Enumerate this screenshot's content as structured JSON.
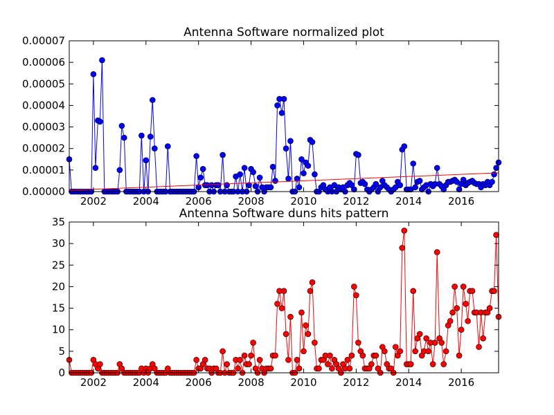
{
  "chart_data": [
    {
      "type": "line",
      "title": "Antenna Software normalized plot",
      "xlim": [
        2001.08,
        2017.42
      ],
      "xticks": [
        2002,
        2004,
        2006,
        2008,
        2010,
        2012,
        2014,
        2016
      ],
      "ylim": [
        0,
        7e-05
      ],
      "yticks": [
        {
          "value": 0,
          "label": "0.00000"
        },
        1e-05,
        2e-05,
        3e-05,
        4e-05,
        5e-05,
        6e-05,
        7e-05
      ],
      "x": [
        2001.08,
        2001.17,
        2001.25,
        2001.33,
        2001.42,
        2001.5,
        2001.58,
        2001.67,
        2001.75,
        2001.83,
        2001.92,
        2002.0,
        2002.08,
        2002.17,
        2002.25,
        2002.33,
        2002.42,
        2002.5,
        2002.58,
        2002.67,
        2002.75,
        2002.83,
        2002.92,
        2003.0,
        2003.08,
        2003.17,
        2003.25,
        2003.33,
        2003.42,
        2003.5,
        2003.58,
        2003.67,
        2003.75,
        2003.83,
        2003.92,
        2004.0,
        2004.08,
        2004.17,
        2004.25,
        2004.33,
        2004.42,
        2004.5,
        2004.58,
        2004.67,
        2004.75,
        2004.83,
        2004.92,
        2005.0,
        2005.08,
        2005.17,
        2005.25,
        2005.33,
        2005.42,
        2005.5,
        2005.58,
        2005.67,
        2005.75,
        2005.83,
        2005.92,
        2006.0,
        2006.08,
        2006.17,
        2006.25,
        2006.33,
        2006.42,
        2006.5,
        2006.58,
        2006.67,
        2006.75,
        2006.83,
        2006.92,
        2007.0,
        2007.08,
        2007.17,
        2007.25,
        2007.33,
        2007.42,
        2007.5,
        2007.58,
        2007.67,
        2007.75,
        2007.83,
        2007.92,
        2008.0,
        2008.08,
        2008.17,
        2008.25,
        2008.33,
        2008.42,
        2008.5,
        2008.58,
        2008.67,
        2008.75,
        2008.83,
        2008.92,
        2009.0,
        2009.08,
        2009.17,
        2009.25,
        2009.33,
        2009.42,
        2009.5,
        2009.58,
        2009.67,
        2009.75,
        2009.83,
        2009.92,
        2010.0,
        2010.08,
        2010.17,
        2010.25,
        2010.33,
        2010.42,
        2010.5,
        2010.58,
        2010.67,
        2010.75,
        2010.83,
        2010.92,
        2011.0,
        2011.08,
        2011.17,
        2011.25,
        2011.33,
        2011.42,
        2011.5,
        2011.58,
        2011.67,
        2011.75,
        2011.83,
        2011.92,
        2012.0,
        2012.08,
        2012.17,
        2012.25,
        2012.33,
        2012.42,
        2012.5,
        2012.58,
        2012.67,
        2012.75,
        2012.83,
        2012.92,
        2013.0,
        2013.08,
        2013.17,
        2013.25,
        2013.33,
        2013.42,
        2013.5,
        2013.58,
        2013.67,
        2013.75,
        2013.83,
        2013.92,
        2014.0,
        2014.08,
        2014.17,
        2014.25,
        2014.33,
        2014.42,
        2014.5,
        2014.58,
        2014.67,
        2014.75,
        2014.83,
        2014.92,
        2015.0,
        2015.08,
        2015.17,
        2015.25,
        2015.33,
        2015.42,
        2015.5,
        2015.58,
        2015.67,
        2015.75,
        2015.83,
        2015.92,
        2016.0,
        2016.08,
        2016.17,
        2016.25,
        2016.33,
        2016.42,
        2016.5,
        2016.58,
        2016.67,
        2016.75,
        2016.83,
        2016.92,
        2017.0,
        2017.08,
        2017.17,
        2017.25,
        2017.33,
        2017.42
      ],
      "color": "#0000ff",
      "values": [
        1.5e-05,
        0,
        0,
        0,
        0,
        0,
        0,
        0,
        0,
        0,
        0,
        5.45e-05,
        1.1e-05,
        3.3e-05,
        3.25e-05,
        6.1e-05,
        0,
        0,
        0,
        0,
        0,
        0,
        0,
        1e-05,
        3.05e-05,
        2.5e-05,
        0,
        0,
        0,
        0,
        0,
        0,
        0,
        2.6e-05,
        0,
        1.45e-05,
        0,
        2.55e-05,
        4.25e-05,
        2e-05,
        0,
        0,
        0,
        0,
        0,
        2.1e-05,
        0,
        0,
        0,
        0,
        0,
        0,
        0,
        0,
        0,
        0,
        0,
        0,
        1.65e-05,
        2e-06,
        6.5e-06,
        1.05e-05,
        3e-06,
        3e-06,
        0,
        3e-06,
        0,
        3e-06,
        3e-06,
        0,
        1.7e-05,
        0,
        3e-06,
        0,
        0,
        0,
        7e-06,
        0,
        8e-06,
        0,
        1.1e-05,
        0,
        3e-06,
        1.05e-05,
        9e-06,
        2.5e-06,
        0,
        6.5e-06,
        2e-06,
        0,
        2e-06,
        2e-06,
        2e-06,
        1.15e-05,
        5e-06,
        4e-05,
        4.3e-05,
        3.65e-05,
        4.3e-05,
        2e-05,
        6e-06,
        2.35e-05,
        0,
        0,
        6e-06,
        2e-06,
        1.5e-05,
        8.5e-06,
        1.35e-05,
        1.2e-05,
        2.4e-05,
        2.3e-05,
        8e-06,
        0,
        0,
        2e-06,
        3e-06,
        1e-06,
        0,
        2e-06,
        0,
        3e-06,
        0,
        2e-06,
        1e-06,
        2e-06,
        0,
        3e-06,
        4e-06,
        3e-06,
        1e-06,
        1.75e-05,
        1.7e-05,
        4e-06,
        4.5e-06,
        3.5e-06,
        1e-06,
        0,
        1e-06,
        2e-06,
        3.5e-06,
        0,
        2e-06,
        5e-06,
        3e-06,
        2e-06,
        1e-06,
        0,
        1e-06,
        2e-06,
        4.5e-06,
        3e-06,
        1.95e-05,
        2.1e-05,
        1e-06,
        1e-06,
        1e-06,
        1.3e-05,
        2e-06,
        4.5e-06,
        5e-06,
        1e-06,
        2e-06,
        3e-06,
        0,
        3.5e-06,
        2.5e-06,
        3.5e-06,
        1.1e-05,
        3.5e-06,
        2.5e-06,
        1e-06,
        3e-06,
        4.5e-06,
        4.5e-06,
        5e-06,
        5.5e-06,
        4.5e-06,
        1e-06,
        3.5e-06,
        5.5e-06,
        3e-06,
        4e-06,
        4.5e-06,
        5e-06,
        4e-06,
        3.5e-06,
        3.5e-06,
        2e-06,
        3.5e-06,
        3e-06,
        4.5e-06,
        3e-06,
        4.5e-06,
        8e-06,
        1.1e-05,
        1.35e-05
      ],
      "trend": {
        "x": [
          2001.08,
          2017.42
        ],
        "values": [
          6e-07,
          8.7e-06
        ],
        "color": "#ff0000"
      }
    },
    {
      "type": "line",
      "title": "Antenna Software duns hits pattern",
      "xlim": [
        2001.08,
        2017.42
      ],
      "xticks": [
        2002,
        2004,
        2006,
        2008,
        2010,
        2012,
        2014,
        2016
      ],
      "ylim": [
        0,
        35
      ],
      "yticks": [
        0,
        5,
        10,
        15,
        20,
        25,
        30,
        35
      ],
      "x": [
        2001.08,
        2001.17,
        2001.25,
        2001.33,
        2001.42,
        2001.5,
        2001.58,
        2001.67,
        2001.75,
        2001.83,
        2001.92,
        2002.0,
        2002.08,
        2002.17,
        2002.25,
        2002.33,
        2002.42,
        2002.5,
        2002.58,
        2002.67,
        2002.75,
        2002.83,
        2002.92,
        2003.0,
        2003.08,
        2003.17,
        2003.25,
        2003.33,
        2003.42,
        2003.5,
        2003.58,
        2003.67,
        2003.75,
        2003.83,
        2003.92,
        2004.0,
        2004.08,
        2004.17,
        2004.25,
        2004.33,
        2004.42,
        2004.5,
        2004.58,
        2004.67,
        2004.75,
        2004.83,
        2004.92,
        2005.0,
        2005.08,
        2005.17,
        2005.25,
        2005.33,
        2005.42,
        2005.5,
        2005.58,
        2005.67,
        2005.75,
        2005.83,
        2005.92,
        2006.0,
        2006.08,
        2006.17,
        2006.25,
        2006.33,
        2006.42,
        2006.5,
        2006.58,
        2006.67,
        2006.75,
        2006.83,
        2006.92,
        2007.0,
        2007.08,
        2007.17,
        2007.25,
        2007.33,
        2007.42,
        2007.5,
        2007.58,
        2007.67,
        2007.75,
        2007.83,
        2007.92,
        2008.0,
        2008.08,
        2008.17,
        2008.25,
        2008.33,
        2008.42,
        2008.5,
        2008.58,
        2008.67,
        2008.75,
        2008.83,
        2008.92,
        2009.0,
        2009.08,
        2009.17,
        2009.25,
        2009.33,
        2009.42,
        2009.5,
        2009.58,
        2009.67,
        2009.75,
        2009.83,
        2009.92,
        2010.0,
        2010.08,
        2010.17,
        2010.25,
        2010.33,
        2010.42,
        2010.5,
        2010.58,
        2010.67,
        2010.75,
        2010.83,
        2010.92,
        2011.0,
        2011.08,
        2011.17,
        2011.25,
        2011.33,
        2011.42,
        2011.5,
        2011.58,
        2011.67,
        2011.75,
        2011.83,
        2011.92,
        2012.0,
        2012.08,
        2012.17,
        2012.25,
        2012.33,
        2012.42,
        2012.5,
        2012.58,
        2012.67,
        2012.75,
        2012.83,
        2012.92,
        2013.0,
        2013.08,
        2013.17,
        2013.25,
        2013.33,
        2013.42,
        2013.5,
        2013.58,
        2013.67,
        2013.75,
        2013.83,
        2013.92,
        2014.0,
        2014.08,
        2014.17,
        2014.25,
        2014.33,
        2014.42,
        2014.5,
        2014.58,
        2014.67,
        2014.75,
        2014.83,
        2014.92,
        2015.0,
        2015.08,
        2015.17,
        2015.25,
        2015.33,
        2015.42,
        2015.5,
        2015.58,
        2015.67,
        2015.75,
        2015.83,
        2015.92,
        2016.0,
        2016.08,
        2016.17,
        2016.25,
        2016.33,
        2016.42,
        2016.5,
        2016.58,
        2016.67,
        2016.75,
        2016.83,
        2016.92,
        2017.0,
        2017.08,
        2017.17,
        2017.25,
        2017.33,
        2017.42
      ],
      "color": "#ff0000",
      "values": [
        3,
        0,
        0,
        0,
        0,
        0,
        0,
        0,
        0,
        0,
        0,
        3,
        2,
        1,
        2,
        0,
        0,
        0,
        0,
        0,
        0,
        0,
        0,
        2,
        1,
        0,
        0,
        0,
        0,
        0,
        0,
        0,
        0,
        1,
        0,
        1,
        0,
        1,
        2,
        1,
        0,
        0,
        0,
        0,
        0,
        1,
        0,
        0,
        0,
        0,
        0,
        0,
        0,
        0,
        0,
        0,
        0,
        0,
        3,
        1,
        1,
        2,
        3,
        1,
        1,
        0,
        1,
        1,
        0,
        0,
        5,
        0,
        2,
        0,
        0,
        0,
        3,
        1,
        3,
        0,
        4,
        2,
        2,
        4,
        7,
        1,
        0,
        3,
        1,
        0,
        1,
        1,
        1,
        4,
        4,
        16,
        19,
        15,
        19,
        9,
        3,
        13,
        0,
        0,
        3,
        1,
        14,
        5,
        11,
        9,
        19,
        21,
        7,
        1,
        1,
        3,
        3,
        4,
        2,
        4,
        1,
        3,
        2,
        1,
        0,
        2,
        1,
        3,
        1,
        4,
        20,
        18,
        7,
        5,
        4,
        1,
        1,
        1,
        2,
        4,
        4,
        1,
        0,
        6,
        5,
        2,
        1,
        1,
        0,
        6,
        4,
        5,
        29,
        33,
        2,
        2,
        2,
        19,
        5,
        8,
        9,
        4,
        5,
        8,
        5,
        7,
        2,
        7,
        28,
        8,
        7,
        2,
        5,
        11,
        12,
        14,
        20,
        15,
        4,
        10,
        20,
        16,
        12,
        19,
        19,
        14,
        14,
        6,
        14,
        8,
        14,
        14,
        15,
        19,
        19,
        32,
        13
      ]
    }
  ]
}
